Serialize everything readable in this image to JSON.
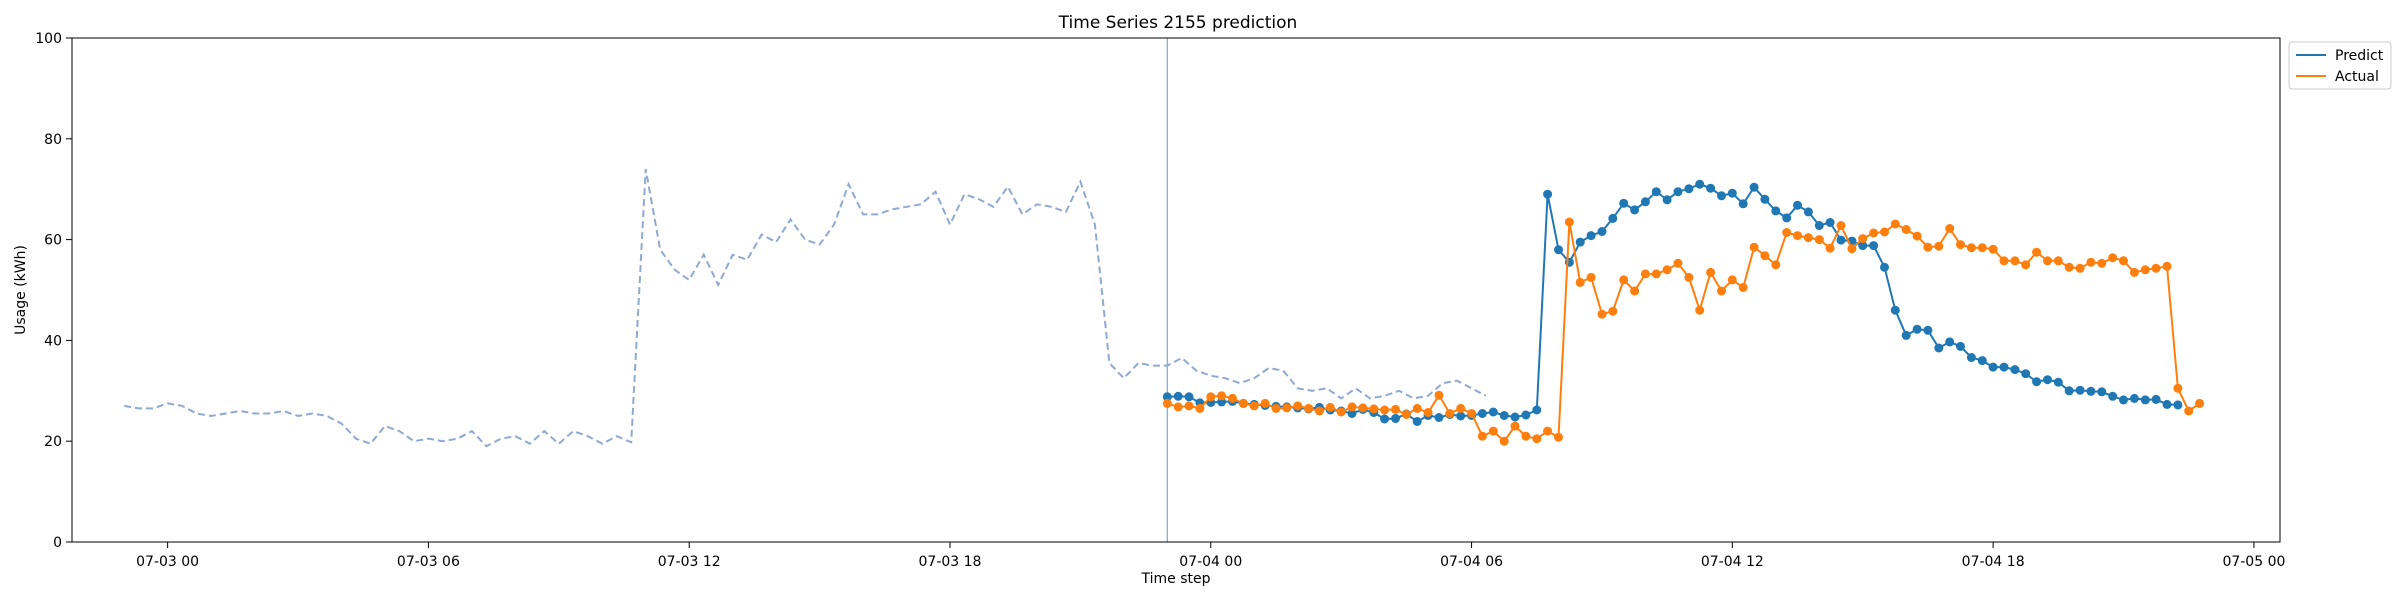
{
  "chart_data": {
    "type": "line",
    "title": "Time Series 2155 prediction",
    "xlabel": "Time step",
    "ylabel": "Usage (kWh)",
    "ylim": [
      0,
      100
    ],
    "xlim": [
      "2023-07-02 21:48",
      "2023-07-05 00:36"
    ],
    "x_ticks": [
      {
        "t": "2023-07-03 00:00",
        "label": "07-03 00"
      },
      {
        "t": "2023-07-03 06:00",
        "label": "07-03 06"
      },
      {
        "t": "2023-07-03 12:00",
        "label": "07-03 12"
      },
      {
        "t": "2023-07-03 18:00",
        "label": "07-03 18"
      },
      {
        "t": "2023-07-04 00:00",
        "label": "07-04 00"
      },
      {
        "t": "2023-07-04 06:00",
        "label": "07-04 06"
      },
      {
        "t": "2023-07-04 12:00",
        "label": "07-04 12"
      },
      {
        "t": "2023-07-04 18:00",
        "label": "07-04 18"
      },
      {
        "t": "2023-07-05 00:00",
        "label": "07-05 00"
      }
    ],
    "y_ticks": [
      0,
      20,
      40,
      60,
      80,
      100
    ],
    "grid": false,
    "legend": {
      "placement": "upper-right-outside",
      "entries": [
        "Predict",
        "Actual"
      ]
    },
    "colors": {
      "history": "#8faad0",
      "predict": "#1f77b4",
      "actual": "#ff7f0e",
      "divider": "#8faad0"
    },
    "divider_time": "2023-07-03 23:00",
    "history": {
      "start": "2023-07-02 23:00",
      "interval_minutes": 20,
      "values": [
        27,
        26.5,
        26.5,
        27.5,
        27,
        25.5,
        25,
        25.5,
        26,
        25.5,
        25.5,
        26,
        25,
        25.5,
        25,
        23.5,
        20.5,
        19.5,
        23,
        22,
        20,
        20.5,
        20,
        20.5,
        22,
        19,
        20.5,
        21,
        19.5,
        22,
        19.5,
        22,
        21,
        19.5,
        21,
        19.8,
        74,
        58,
        54,
        52,
        57,
        51,
        57,
        56,
        61,
        59.5,
        64,
        60,
        59,
        63,
        71,
        65,
        65,
        66,
        66.5,
        67,
        69.5,
        63,
        69,
        68,
        66.5,
        70.5,
        65,
        67,
        66.5,
        65.5,
        71.5,
        63,
        35.5,
        32.5,
        35.5,
        35,
        35,
        36.5,
        34,
        33,
        32.5,
        31.5,
        32.5,
        34.5,
        34,
        30.5,
        30,
        30.5,
        28.5,
        30.5,
        28.5,
        29,
        30,
        28.5,
        29,
        31.5,
        32,
        30.5,
        29
      ]
    },
    "series": [
      {
        "name": "Predict",
        "start": "2023-07-03 23:00",
        "interval_minutes": 15,
        "values": [
          28.8,
          28.9,
          28.8,
          27.6,
          27.7,
          27.8,
          27.9,
          27.5,
          27.3,
          27.1,
          26.9,
          26.8,
          26.6,
          26.4,
          26.7,
          26.2,
          26,
          25.5,
          26.3,
          25.7,
          24.4,
          24.5,
          25.4,
          23.9,
          25.1,
          24.7,
          25.3,
          25,
          25.1,
          25.5,
          25.8,
          25.1,
          24.8,
          25.2,
          26.2,
          69,
          58,
          55.5,
          59.5,
          60.8,
          61.6,
          64.2,
          67.2,
          65.9,
          67.5,
          69.5,
          67.9,
          69.5,
          70.1,
          71,
          70.2,
          68.7,
          69.2,
          67.1,
          70.4,
          68,
          65.7,
          64.3,
          66.8,
          65.5,
          62.8,
          63.4,
          59.9,
          59.7,
          58.8,
          58.8,
          54.5,
          46,
          41,
          42.2,
          42,
          38.5,
          39.7,
          38.8,
          36.6,
          36,
          34.7,
          34.7,
          34.2,
          33.4,
          31.8,
          32.2,
          31.7,
          30,
          30.1,
          29.9,
          29.8,
          28.9,
          28.2,
          28.5,
          28.2,
          28.3,
          27.3,
          27.2
        ]
      },
      {
        "name": "Actual",
        "start": "2023-07-03 23:00",
        "interval_minutes": 15,
        "values": [
          27.5,
          26.8,
          27,
          26.5,
          28.8,
          29,
          28.5,
          27.5,
          27,
          27.5,
          26.5,
          26.6,
          27,
          26.5,
          26,
          26.7,
          25.8,
          26.8,
          26.6,
          26.4,
          26.2,
          26.3,
          25.3,
          26.5,
          25.7,
          29.1,
          25.5,
          26.5,
          25.5,
          21,
          22,
          20,
          23,
          21,
          20.5,
          22,
          20.8,
          63.5,
          51.5,
          52.5,
          45.2,
          45.8,
          52,
          49.8,
          53.2,
          53.2,
          54,
          55.3,
          52.5,
          46,
          53.5,
          49.8,
          52,
          50.5,
          58.5,
          56.8,
          55,
          61.4,
          60.8,
          60.4,
          60,
          58.3,
          62.8,
          58.2,
          60.2,
          61.3,
          61.5,
          63.1,
          62,
          60.7,
          58.5,
          58.7,
          62.2,
          59,
          58.4,
          58.4,
          58.1,
          55.8,
          55.8,
          55,
          57.5,
          55.8,
          55.8,
          54.5,
          54.3,
          55.5,
          55.3,
          56.4,
          55.8,
          53.5,
          54,
          54.3,
          54.7,
          30.5,
          26,
          27.5
        ]
      }
    ]
  }
}
